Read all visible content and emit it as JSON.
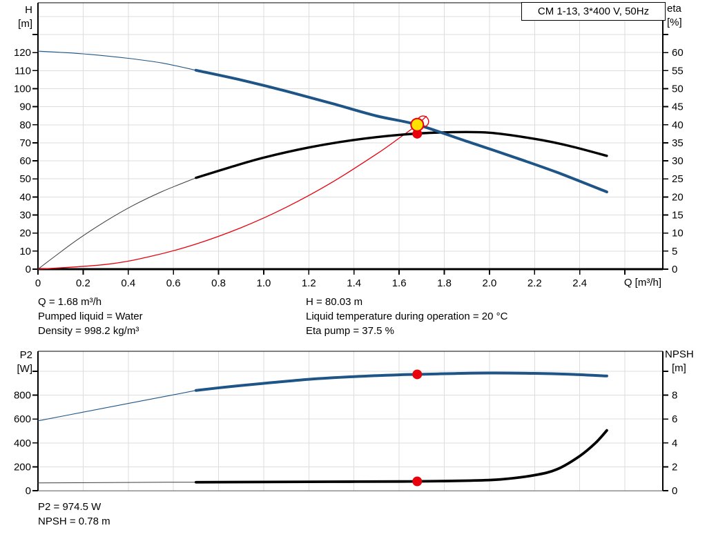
{
  "pump_model_title": "CM 1-13, 3*400 V, 50Hz",
  "colors": {
    "curve_blue": "#1e5586",
    "curve_black": "#000000",
    "curve_thin_gray": "#3c3c3c",
    "curve_red": "#e8000d",
    "marker_yellow": "#ffe000",
    "marker_red": "#e8000d",
    "grid": "#dcdcdc"
  },
  "info": {
    "top_left": [
      "Q = 1.68 m³/h",
      "Pumped liquid = Water",
      "Density = 998.2 kg/m³"
    ],
    "top_right": [
      "H = 80.03 m",
      "Liquid temperature during operation = 20 °C",
      "Eta pump = 37.5 %"
    ],
    "bottom": [
      "P2 = 974.5 W",
      "NPSH = 0.78 m"
    ]
  },
  "chart_data": [
    {
      "type": "line",
      "id": "hq-eta-chart",
      "title": "CM 1-13, 3*400 V, 50Hz",
      "x_axis": {
        "label": "Q [m³/h]",
        "range": [
          0,
          2.768
        ],
        "grid_step": 0.2,
        "ticks": [
          [
            0,
            "0"
          ],
          [
            0.2,
            "0.2"
          ],
          [
            0.4,
            "0.4"
          ],
          [
            0.6,
            "0.6"
          ],
          [
            0.8,
            "0.8"
          ],
          [
            1.0,
            "1.0"
          ],
          [
            1.2,
            "1.2"
          ],
          [
            1.4,
            "1.4"
          ],
          [
            1.6,
            "1.6"
          ],
          [
            1.8,
            "1.8"
          ],
          [
            2.0,
            "2.0"
          ],
          [
            2.2,
            "2.2"
          ],
          [
            2.4,
            "2.4"
          ]
        ],
        "extra_ticks": [
          2.6
        ]
      },
      "left_axis": {
        "label": "H",
        "unit": "[m]",
        "range": [
          0,
          147.6
        ],
        "grid_step": 10,
        "ticks": [
          [
            0,
            "0"
          ],
          [
            10,
            "10"
          ],
          [
            20,
            "20"
          ],
          [
            30,
            "30"
          ],
          [
            40,
            "40"
          ],
          [
            50,
            "50"
          ],
          [
            60,
            "60"
          ],
          [
            70,
            "70"
          ],
          [
            80,
            "80"
          ],
          [
            90,
            "90"
          ],
          [
            100,
            "100"
          ],
          [
            110,
            "110"
          ],
          [
            120,
            "120"
          ]
        ],
        "extra_ticks": [
          130
        ]
      },
      "right_axis": {
        "label": "eta",
        "unit": "[%]",
        "range": [
          0,
          73.8
        ],
        "ticks": [
          [
            0,
            "0"
          ],
          [
            5,
            "5"
          ],
          [
            10,
            "10"
          ],
          [
            15,
            "15"
          ],
          [
            20,
            "20"
          ],
          [
            25,
            "25"
          ],
          [
            30,
            "30"
          ],
          [
            35,
            "35"
          ],
          [
            40,
            "40"
          ],
          [
            45,
            "45"
          ],
          [
            50,
            "50"
          ],
          [
            55,
            "55"
          ],
          [
            60,
            "60"
          ]
        ],
        "extra_ticks": [
          65
        ]
      },
      "series": [
        {
          "name": "system-curve",
          "axis": "left",
          "color": "#e8000d",
          "width": 1.3,
          "points": [
            [
              0,
              0
            ],
            [
              0.3,
              2.6
            ],
            [
              0.5,
              7.1
            ],
            [
              0.7,
              13.9
            ],
            [
              0.9,
              23.0
            ],
            [
              1.1,
              34.3
            ],
            [
              1.3,
              47.9
            ],
            [
              1.5,
              63.8
            ],
            [
              1.6,
              72.6
            ],
            [
              1.68,
              80.03
            ],
            [
              1.72,
              84.7
            ]
          ]
        },
        {
          "name": "eta-curve-thin",
          "axis": "right",
          "color": "#3c3c3c",
          "width": 1,
          "points": [
            [
              0,
              0
            ],
            [
              0.08,
              3.8
            ],
            [
              0.18,
              8.4
            ],
            [
              0.3,
              13.3
            ],
            [
              0.42,
              17.6
            ],
            [
              0.55,
              21.5
            ],
            [
              0.7,
              25.3
            ]
          ]
        },
        {
          "name": "eta-curve",
          "axis": "right",
          "color": "#000000",
          "width": 3.4,
          "points": [
            [
              0.7,
              25.3
            ],
            [
              0.85,
              28.2
            ],
            [
              1.0,
              30.9
            ],
            [
              1.2,
              33.7
            ],
            [
              1.4,
              35.8
            ],
            [
              1.6,
              37.2
            ],
            [
              1.8,
              37.9
            ],
            [
              2.0,
              37.8
            ],
            [
              2.2,
              36.1
            ],
            [
              2.35,
              34.2
            ],
            [
              2.52,
              31.4
            ]
          ]
        },
        {
          "name": "pump-curve-thin",
          "axis": "left",
          "color": "#1e5586",
          "width": 1.1,
          "points": [
            [
              0,
              120.8
            ],
            [
              0.2,
              119.3
            ],
            [
              0.4,
              116.8
            ],
            [
              0.55,
              114.2
            ],
            [
              0.7,
              110.2
            ]
          ]
        },
        {
          "name": "pump-curve",
          "axis": "left",
          "color": "#1e5586",
          "width": 4,
          "points": [
            [
              0.7,
              110.2
            ],
            [
              0.9,
              104.8
            ],
            [
              1.1,
              98.6
            ],
            [
              1.3,
              91.9
            ],
            [
              1.5,
              84.9
            ],
            [
              1.68,
              80.03
            ],
            [
              1.9,
              70.8
            ],
            [
              2.1,
              62.4
            ],
            [
              2.3,
              53.6
            ],
            [
              2.52,
              42.8
            ]
          ]
        }
      ],
      "annotations": [
        {
          "name": "system-curve-end-loop",
          "type": "loop-circle",
          "axis": "left",
          "x": 1.706,
          "value": 81.8,
          "r": 8,
          "color": "#e8000d"
        }
      ],
      "markers": [
        {
          "name": "duty-point-eta",
          "axis": "right",
          "x": 1.68,
          "value": 37.5,
          "r": 7,
          "fill": "#e8000d",
          "stroke": "none",
          "stroke_width": 0,
          "interactable": false
        },
        {
          "name": "duty-point-qh",
          "axis": "left",
          "x": 1.68,
          "value": 80.03,
          "r": 9,
          "fill": "#ffe000",
          "stroke": "#e8000d",
          "stroke_width": 2,
          "interactable": true
        }
      ]
    },
    {
      "type": "line",
      "id": "p2-npsh-chart",
      "title": "",
      "x_axis": {
        "label": "",
        "range": [
          0,
          2.768
        ],
        "grid_step": 0.2,
        "ticks": [],
        "extra_ticks": []
      },
      "left_axis": {
        "label": "P2",
        "unit": "[W]",
        "range": [
          0,
          1168
        ],
        "grid_step": 200,
        "ticks": [
          [
            0,
            "0"
          ],
          [
            200,
            "200"
          ],
          [
            400,
            "400"
          ],
          [
            600,
            "600"
          ],
          [
            800,
            "800"
          ]
        ],
        "extra_ticks": [
          1000
        ]
      },
      "right_axis": {
        "label": "NPSH",
        "unit": "[m]",
        "range": [
          0,
          11.68
        ],
        "ticks": [
          [
            0,
            "0"
          ],
          [
            2,
            "2"
          ],
          [
            4,
            "4"
          ],
          [
            6,
            "6"
          ],
          [
            8,
            "8"
          ]
        ],
        "extra_ticks": [
          10
        ]
      },
      "series": [
        {
          "name": "p2-curve-thin",
          "axis": "left",
          "color": "#1e5586",
          "width": 1.1,
          "points": [
            [
              0,
              585
            ],
            [
              0.2,
              658
            ],
            [
              0.4,
              731
            ],
            [
              0.6,
              803
            ],
            [
              0.7,
              840
            ]
          ]
        },
        {
          "name": "p2-curve",
          "axis": "left",
          "color": "#1e5586",
          "width": 4,
          "points": [
            [
              0.7,
              840
            ],
            [
              0.85,
              872
            ],
            [
              1.0,
              899
            ],
            [
              1.2,
              933
            ],
            [
              1.4,
              956
            ],
            [
              1.6,
              971
            ],
            [
              1.68,
              974.5
            ],
            [
              1.85,
              982
            ],
            [
              2.0,
              986
            ],
            [
              2.2,
              983
            ],
            [
              2.35,
              976
            ],
            [
              2.52,
              961
            ]
          ]
        },
        {
          "name": "npsh-curve-thin",
          "axis": "right",
          "color": "#3c3c3c",
          "width": 1,
          "points": [
            [
              0,
              0.65
            ],
            [
              0.3,
              0.68
            ],
            [
              0.5,
              0.7
            ],
            [
              0.7,
              0.71
            ]
          ]
        },
        {
          "name": "npsh-curve",
          "axis": "right",
          "color": "#000000",
          "width": 3.8,
          "points": [
            [
              0.7,
              0.71
            ],
            [
              1.0,
              0.73
            ],
            [
              1.3,
              0.75
            ],
            [
              1.6,
              0.77
            ],
            [
              1.68,
              0.78
            ],
            [
              1.9,
              0.84
            ],
            [
              2.05,
              0.95
            ],
            [
              2.2,
              1.3
            ],
            [
              2.3,
              1.8
            ],
            [
              2.4,
              2.9
            ],
            [
              2.47,
              4.0
            ],
            [
              2.52,
              5.05
            ]
          ]
        }
      ],
      "annotations": [],
      "markers": [
        {
          "name": "duty-point-p2",
          "axis": "left",
          "x": 1.68,
          "value": 974.5,
          "r": 7,
          "fill": "#e8000d",
          "stroke": "none",
          "stroke_width": 0,
          "interactable": false
        },
        {
          "name": "duty-point-npsh",
          "axis": "right",
          "x": 1.68,
          "value": 0.78,
          "r": 7,
          "fill": "#e8000d",
          "stroke": "none",
          "stroke_width": 0,
          "interactable": false
        }
      ]
    }
  ]
}
